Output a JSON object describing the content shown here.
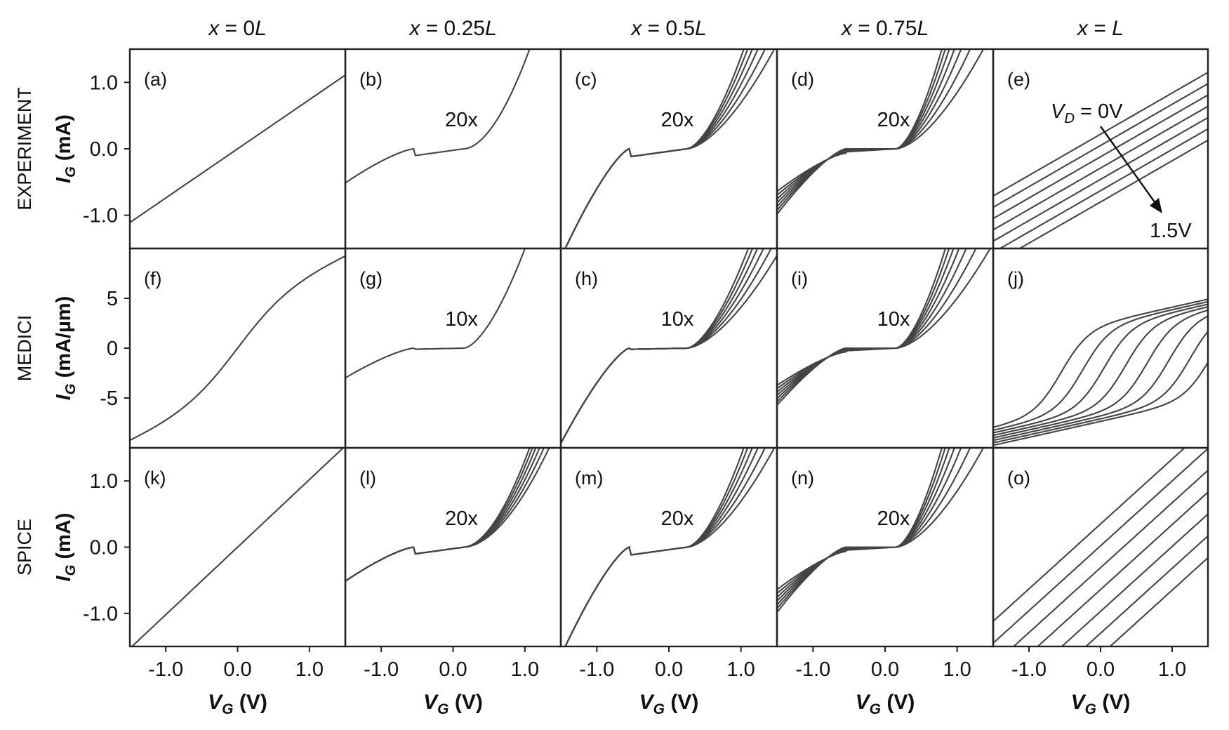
{
  "column_titles": [
    {
      "var": "x",
      "eq": " = 0",
      "unit": "L"
    },
    {
      "var": "x",
      "eq": " = 0.25",
      "unit": "L"
    },
    {
      "var": "x",
      "eq": " = 0.5",
      "unit": "L"
    },
    {
      "var": "x",
      "eq": " = 0.75",
      "unit": "L"
    },
    {
      "var": "x",
      "eq": " = ",
      "unit": "L"
    }
  ],
  "row_titles": [
    "EXPERIMENT",
    "MEDICI",
    "SPICE"
  ],
  "y_axis_labels": [
    {
      "sym": "I",
      "sub": "G",
      "unit": " (mA)"
    },
    {
      "sym": "I",
      "sub": "G",
      "unit": " (mA/µm)"
    },
    {
      "sym": "I",
      "sub": "G",
      "unit": " (mA)"
    }
  ],
  "x_axis_label": {
    "sym": "V",
    "sub": "G",
    "unit": " (V)"
  },
  "x_ticks": [
    "-1.0",
    "0.0",
    "1.0"
  ],
  "y_ticks": [
    [
      "1.0",
      "0.0",
      "-1.0"
    ],
    [
      "5",
      "0",
      "-5"
    ],
    [
      "1.0",
      "0.0",
      "-1.0"
    ]
  ],
  "panel_labels": [
    "(a)",
    "(b)",
    "(c)",
    "(d)",
    "(e)",
    "(f)",
    "(g)",
    "(h)",
    "(i)",
    "(j)",
    "(k)",
    "(l)",
    "(m)",
    "(n)",
    "(o)"
  ],
  "multipliers": [
    [
      "",
      "20x",
      "20x",
      "20x",
      ""
    ],
    [
      "",
      "10x",
      "10x",
      "10x",
      ""
    ],
    [
      "",
      "20x",
      "20x",
      "20x",
      ""
    ]
  ],
  "annotation": {
    "vd_sym": "V",
    "vd_sub": "D",
    "vd_start": " = 0V",
    "vd_end": "1.5V"
  },
  "chart_data": {
    "type": "line",
    "layout": "3x5 panel grid",
    "x_range": [
      -1.5,
      1.5
    ],
    "y_ranges": [
      [
        -1.5,
        1.5
      ],
      [
        -10,
        10
      ],
      [
        -1.5,
        1.5
      ]
    ],
    "drain_voltage_sweep_V": [
      0,
      1.5
    ],
    "curves_per_panel": [
      [
        1,
        1,
        6,
        7,
        7
      ],
      [
        1,
        1,
        6,
        7,
        8
      ],
      [
        1,
        6,
        6,
        7,
        7
      ]
    ],
    "grid": false,
    "legend": "none"
  }
}
